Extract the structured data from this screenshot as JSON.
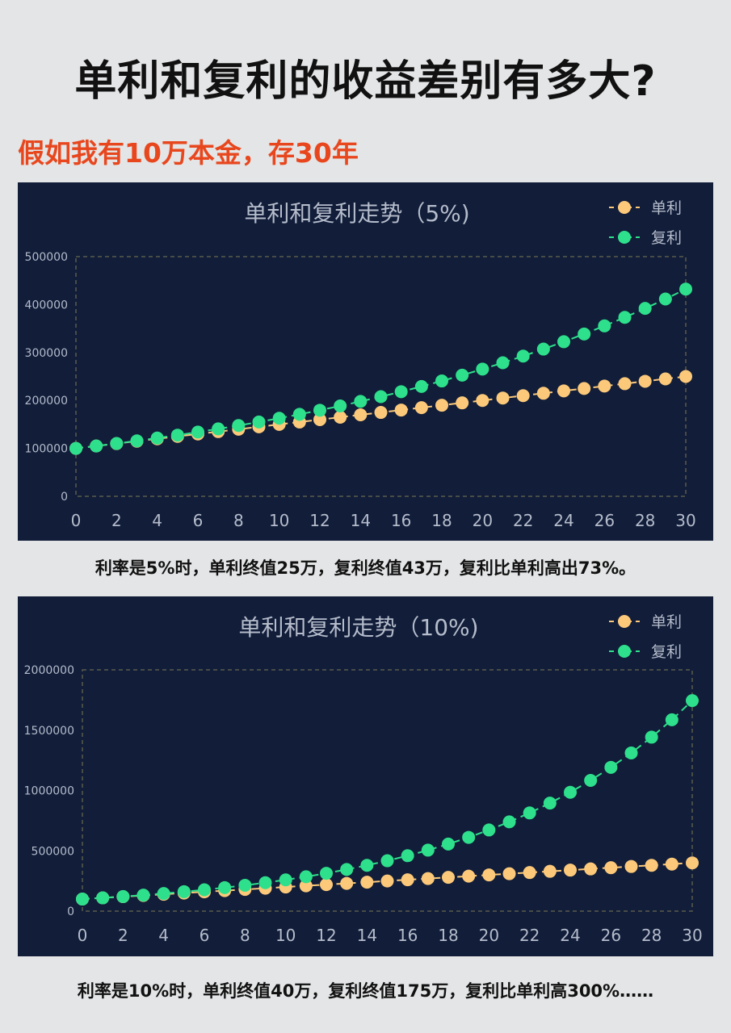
{
  "title": "单利和复利的收益差别有多大?",
  "subtitle": "假如我有10万本金，存30年",
  "captions": [
    "利率是5%时，单利终值25万，复利终值43万，复利比单利高出73%。",
    "利率是10%时，单利终值40万，复利终值175万，复利比单利高300%……"
  ],
  "colors": {
    "simple": "#fcc97a",
    "compound": "#2ee08c",
    "panel_bg": "#111d39",
    "axis_text": "#b5bccb",
    "grid": "#5a5c4c"
  },
  "chart_data": [
    {
      "type": "line",
      "title": "单利和复利走势（5%)",
      "xlabel": "",
      "ylabel": "",
      "x": [
        0,
        1,
        2,
        3,
        4,
        5,
        6,
        7,
        8,
        9,
        10,
        11,
        12,
        13,
        14,
        15,
        16,
        17,
        18,
        19,
        20,
        21,
        22,
        23,
        24,
        25,
        26,
        27,
        28,
        29,
        30
      ],
      "x_ticks": [
        "0",
        "2",
        "4",
        "6",
        "8",
        "10",
        "12",
        "14",
        "16",
        "18",
        "20",
        "22",
        "24",
        "26",
        "28",
        "30"
      ],
      "y_ticks": [
        "0",
        "100000",
        "200000",
        "300000",
        "400000",
        "500000"
      ],
      "ylim": [
        0,
        500000
      ],
      "legend_position": "top-right",
      "series": [
        {
          "name": "单利",
          "color": "#fcc97a",
          "values": [
            100000,
            105000,
            110000,
            115000,
            120000,
            125000,
            130000,
            135000,
            140000,
            145000,
            150000,
            155000,
            160000,
            165000,
            170000,
            175000,
            180000,
            185000,
            190000,
            195000,
            200000,
            205000,
            210000,
            215000,
            220000,
            225000,
            230000,
            235000,
            240000,
            245000,
            250000
          ]
        },
        {
          "name": "复利",
          "color": "#2ee08c",
          "values": [
            100000,
            105000,
            110250,
            115763,
            121551,
            127628,
            134010,
            140710,
            147746,
            155133,
            162889,
            171034,
            179586,
            188565,
            197993,
            207893,
            218287,
            229202,
            240662,
            252695,
            265330,
            278596,
            292526,
            307152,
            322510,
            338635,
            355567,
            373346,
            392013,
            411614,
            432194
          ]
        }
      ]
    },
    {
      "type": "line",
      "title": "单利和复利走势（10%)",
      "xlabel": "",
      "ylabel": "",
      "x": [
        0,
        1,
        2,
        3,
        4,
        5,
        6,
        7,
        8,
        9,
        10,
        11,
        12,
        13,
        14,
        15,
        16,
        17,
        18,
        19,
        20,
        21,
        22,
        23,
        24,
        25,
        26,
        27,
        28,
        29,
        30
      ],
      "x_ticks": [
        "0",
        "2",
        "4",
        "6",
        "8",
        "10",
        "12",
        "14",
        "16",
        "18",
        "20",
        "22",
        "24",
        "26",
        "28",
        "30"
      ],
      "y_ticks": [
        "0",
        "500000",
        "1000000",
        "1500000",
        "2000000"
      ],
      "ylim": [
        0,
        2000000
      ],
      "legend_position": "top-right",
      "series": [
        {
          "name": "单利",
          "color": "#fcc97a",
          "values": [
            100000,
            110000,
            120000,
            130000,
            140000,
            150000,
            160000,
            170000,
            180000,
            190000,
            200000,
            210000,
            220000,
            230000,
            240000,
            250000,
            260000,
            270000,
            280000,
            290000,
            300000,
            310000,
            320000,
            330000,
            340000,
            350000,
            360000,
            370000,
            380000,
            390000,
            400000
          ]
        },
        {
          "name": "复利",
          "color": "#2ee08c",
          "values": [
            100000,
            110000,
            121000,
            133100,
            146410,
            161051,
            177156,
            194872,
            214359,
            235795,
            259374,
            285312,
            313843,
            345227,
            379750,
            417725,
            459497,
            505447,
            555992,
            611591,
            672750,
            740025,
            814027,
            895430,
            984973,
            1083471,
            1191818,
            1310999,
            1442099,
            1586309,
            1744940
          ]
        }
      ]
    }
  ]
}
